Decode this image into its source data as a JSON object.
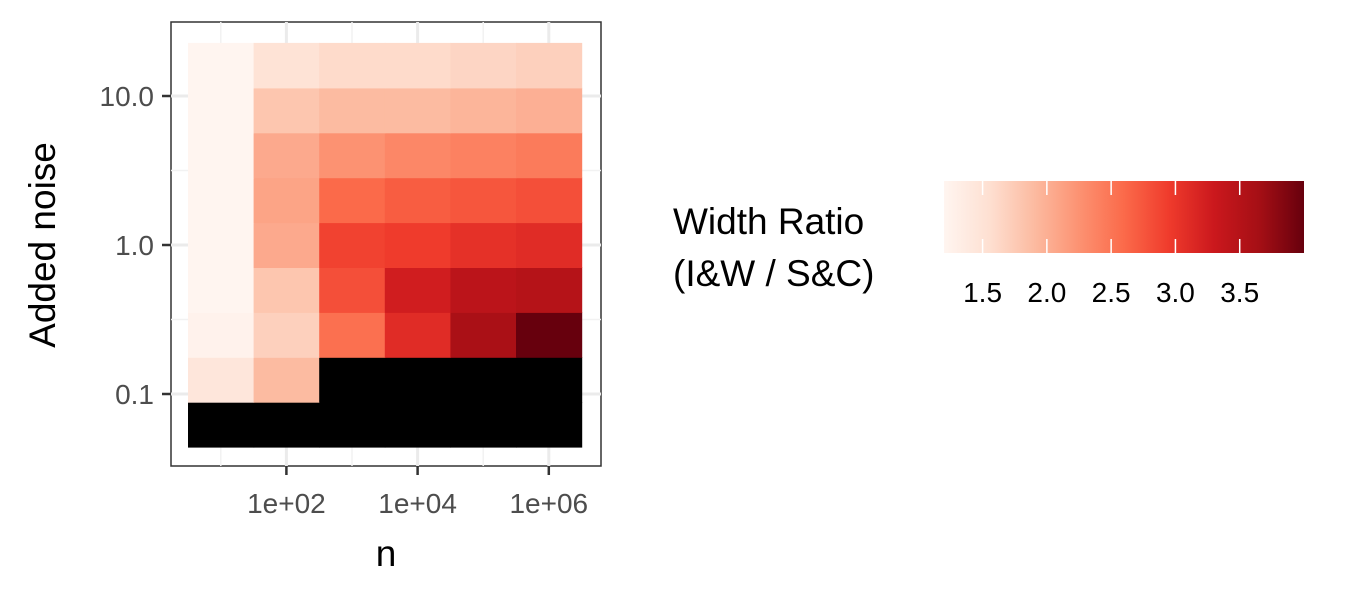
{
  "chart_data": {
    "type": "heatmap",
    "xlabel": "n",
    "ylabel": "Added noise",
    "x_scale": "log10",
    "y_scale": "log10",
    "x_ticks": [
      {
        "value": 100,
        "label": "1e+02"
      },
      {
        "value": 10000,
        "label": "1e+04"
      },
      {
        "value": 1000000,
        "label": "1e+06"
      }
    ],
    "y_ticks": [
      {
        "value": 0.1,
        "label": "0.1"
      },
      {
        "value": 1,
        "label": "1.0"
      },
      {
        "value": 10,
        "label": "10.0"
      }
    ],
    "x": [
      10,
      100,
      1000,
      10000,
      100000,
      1000000
    ],
    "y": [
      0.05,
      0.1,
      0.2,
      0.4,
      0.75,
      1.5,
      3,
      6,
      12
    ],
    "z": [
      [
        null,
        null,
        null,
        null,
        null,
        null
      ],
      [
        1.45,
        1.9,
        null,
        null,
        null,
        null
      ],
      [
        1.25,
        1.7,
        2.55,
        3.1,
        3.6,
        4.0
      ],
      [
        1.2,
        1.8,
        2.8,
        3.25,
        3.45,
        3.5
      ],
      [
        1.2,
        2.05,
        2.9,
        2.95,
        3.05,
        3.1
      ],
      [
        1.2,
        2.1,
        2.6,
        2.7,
        2.75,
        2.8
      ],
      [
        1.2,
        2.05,
        2.25,
        2.35,
        2.4,
        2.45
      ],
      [
        1.2,
        1.8,
        1.9,
        1.9,
        1.95,
        2.0
      ],
      [
        1.2,
        1.5,
        1.6,
        1.6,
        1.65,
        1.7
      ]
    ],
    "missing_color": "#000000",
    "legend": {
      "title_lines": [
        "Width Ratio",
        "(I&W / S&C)"
      ],
      "placement": "right",
      "min": 1.2,
      "max": 4.0,
      "ticks": [
        1.5,
        2.0,
        2.5,
        3.0,
        3.5
      ],
      "tick_labels": [
        "1.5",
        "2.0",
        "2.5",
        "3.0",
        "3.5"
      ],
      "colors": [
        "#fff5f0",
        "#fee0d2",
        "#fcbba1",
        "#fc9272",
        "#fb6a4a",
        "#ef3b2c",
        "#cb181d",
        "#a50f15",
        "#67000d"
      ]
    },
    "grid": true
  }
}
